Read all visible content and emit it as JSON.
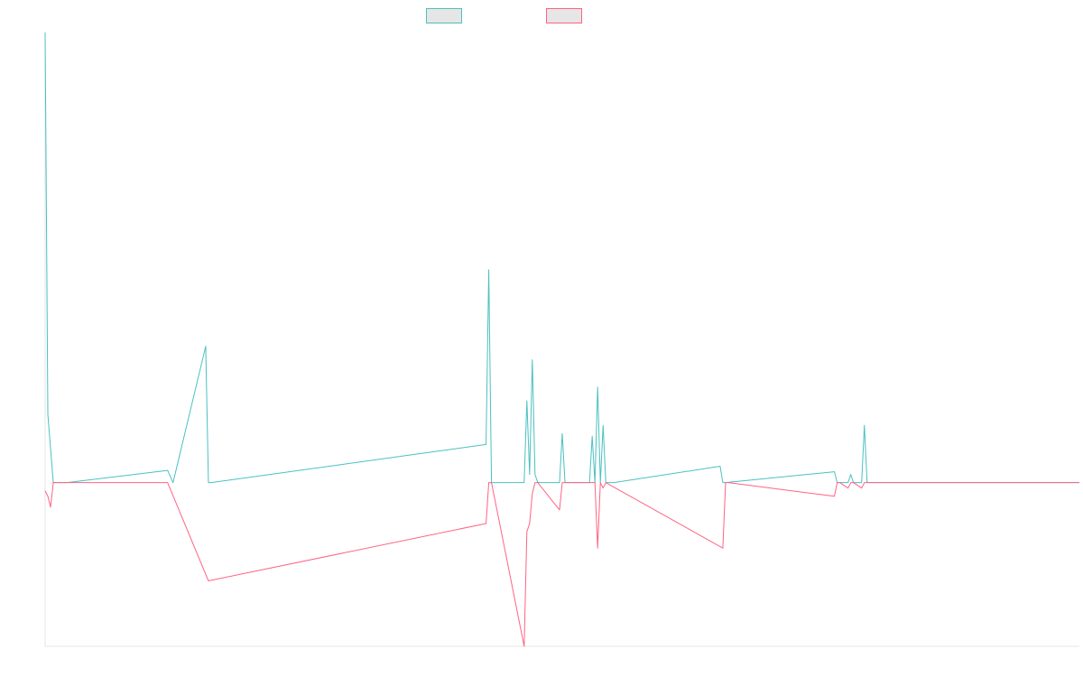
{
  "chart_data": {
    "type": "line",
    "title": "",
    "xlabel": "",
    "ylabel": "",
    "x_range": [
      0,
      380
    ],
    "ylim": [
      -60,
      165
    ],
    "grid": false,
    "legend_position": "top-center",
    "series": [
      {
        "color": "#4bc0c0",
        "fill": "#e6e6e6",
        "x": [
          0,
          1,
          3,
          8,
          45,
          47,
          59,
          60,
          61,
          162,
          163,
          164,
          165,
          176,
          177,
          178,
          179,
          180,
          181,
          189,
          190,
          191,
          200,
          201,
          202,
          203,
          204,
          205,
          206,
          207,
          208,
          209,
          248,
          249,
          250,
          290,
          291,
          292,
          295,
          296,
          297,
          300,
          301,
          302,
          314,
          315,
          316,
          380
        ],
        "y": [
          165,
          25,
          0,
          0,
          4.5,
          0,
          50,
          0,
          0,
          14,
          78,
          0,
          0,
          0,
          30,
          3,
          45,
          3,
          0,
          0,
          18,
          0,
          0,
          17,
          0,
          35,
          0,
          21,
          0,
          0,
          0,
          0,
          6,
          0,
          0,
          4,
          0,
          0,
          0,
          3,
          0,
          0,
          21,
          0,
          0,
          0,
          0,
          0
        ]
      },
      {
        "color": "#ff6384",
        "fill": "#e6e6e6",
        "x": [
          0,
          1,
          2,
          3,
          45,
          60,
          162,
          163,
          164,
          176,
          177,
          178,
          179,
          180,
          181,
          189,
          190,
          191,
          202,
          203,
          204,
          205,
          206,
          249,
          250,
          251,
          290,
          291,
          292,
          295,
          296,
          297,
          300,
          301,
          302,
          380
        ],
        "y": [
          -3,
          -5,
          -9,
          0,
          0,
          -36,
          -15,
          0,
          0,
          -60,
          -18,
          -15,
          -4,
          0,
          0,
          -10,
          0,
          0,
          0,
          -24,
          0,
          -2,
          0,
          -24,
          0,
          0,
          -5,
          0,
          0,
          -2,
          0,
          0,
          -2,
          0,
          0,
          0
        ]
      }
    ]
  }
}
